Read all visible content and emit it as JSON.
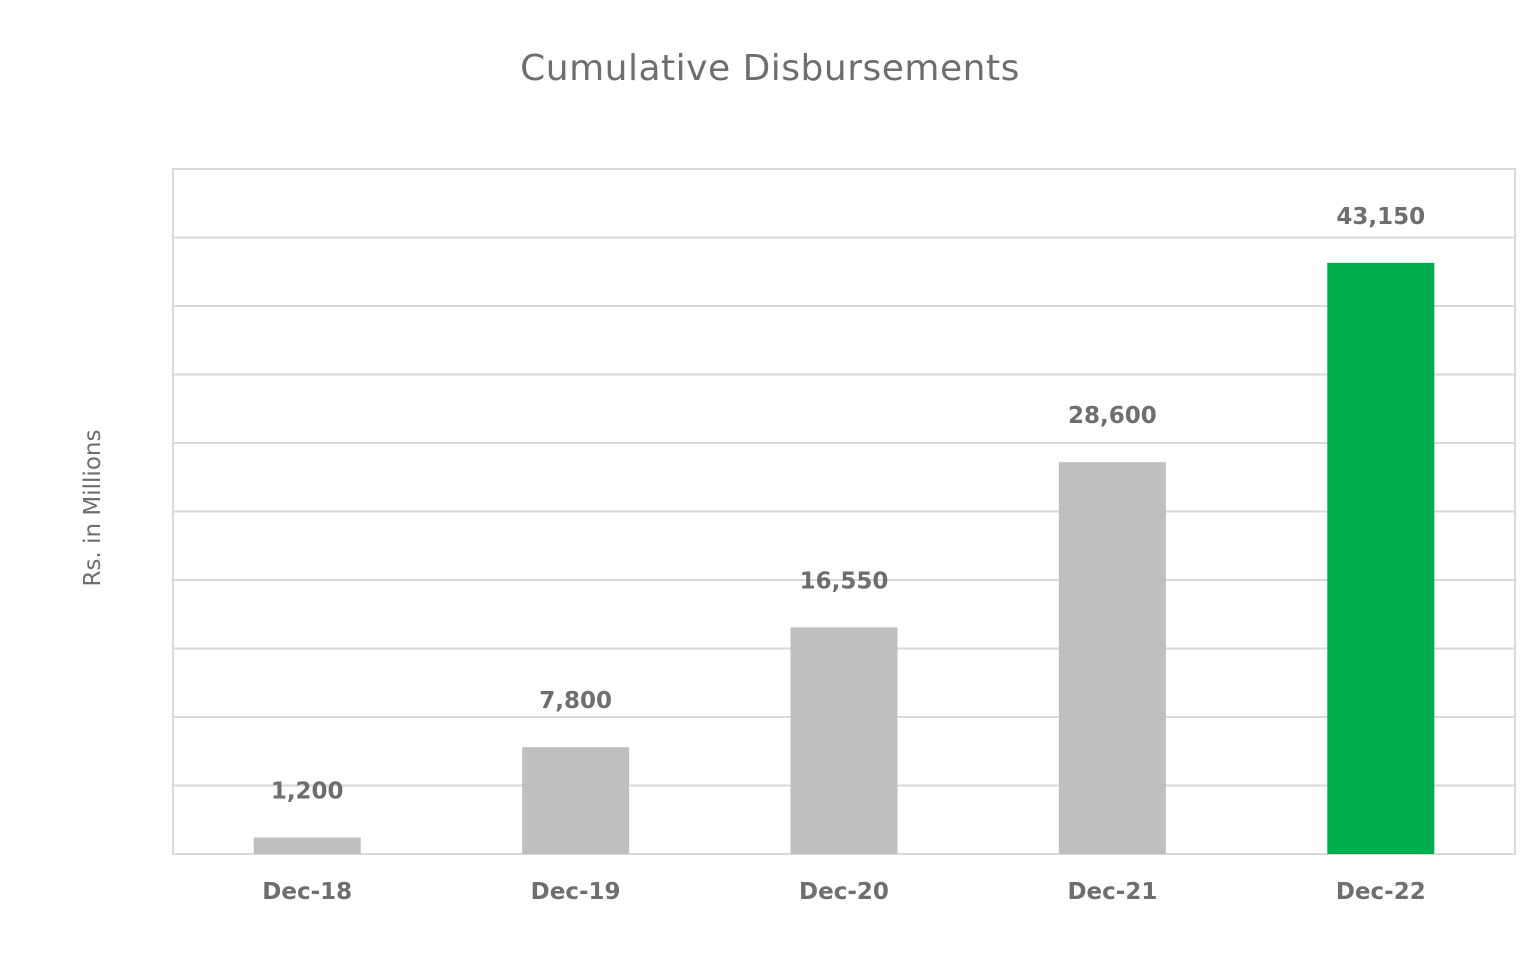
{
  "chart_data": {
    "type": "bar",
    "title": "Cumulative Disbursements",
    "xlabel": "",
    "ylabel": "Rs. in Millions",
    "categories": [
      "Dec-18",
      "Dec-19",
      "Dec-20",
      "Dec-21",
      "Dec-22"
    ],
    "values": [
      1200,
      7800,
      16550,
      28600,
      43150
    ],
    "data_labels": [
      "1,200",
      "7,800",
      "16,550",
      "28,600",
      "43,150"
    ],
    "ylim": [
      0,
      50000
    ],
    "grid": true,
    "legend": "none",
    "colors": {
      "default_bar": "#bfbfbf",
      "highlight_bar": "#00ad4e",
      "gridline": "#d9d9d9",
      "text": "#6e6e6e"
    },
    "highlight_category": "Dec-22"
  }
}
